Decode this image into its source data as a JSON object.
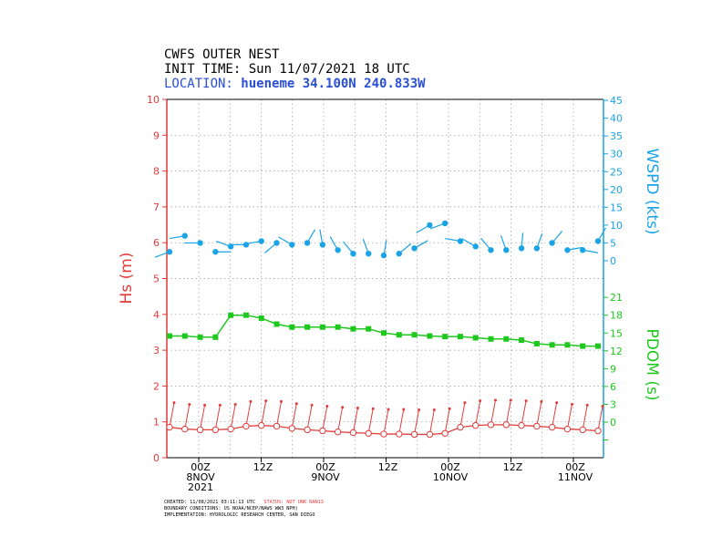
{
  "header": {
    "line1": "CWFS OUTER NEST",
    "line2": "INIT TIME: Sun 11/07/2021 18 UTC",
    "location_label": "LOCATION:",
    "location_value": "hueneme 34.100N 240.833W"
  },
  "footer": {
    "created": "CREATED: 11/08/2021 03:11:13 UTC",
    "status": "STATUS: NOT UNK RAN13",
    "boundary": "BOUNDARY CONDITIONS: US NOAA/NCEP/NAWS WW3 NPH)",
    "implementation": "IMPLEMENTATION: HYDROLOGIC RESEARCH CENTER, SAN DIEGO"
  },
  "colors": {
    "hs": "#e03c3c",
    "wspd": "#1aa3e6",
    "pdom": "#1ec81e",
    "location": "#2a4fd6",
    "status": "#e03c3c"
  },
  "chart_data": {
    "type": "line",
    "x_labels": [
      {
        "top": "00Z",
        "mid": "8NOV",
        "bot": "2021"
      },
      {
        "top": "12Z",
        "mid": "",
        "bot": ""
      },
      {
        "top": "00Z",
        "mid": "9NOV",
        "bot": ""
      },
      {
        "top": "12Z",
        "mid": "",
        "bot": ""
      },
      {
        "top": "00Z",
        "mid": "10NOV",
        "bot": ""
      },
      {
        "top": "12Z",
        "mid": "",
        "bot": ""
      },
      {
        "top": "00Z",
        "mid": "11NOV",
        "bot": ""
      }
    ],
    "hs_axis": {
      "label": "Hs (m)",
      "ticks": [
        "0",
        "1",
        "2",
        "3",
        "4",
        "5",
        "6",
        "7",
        "8",
        "9",
        "10"
      ],
      "ylim": [
        0,
        10
      ]
    },
    "wspd_axis": {
      "label": "WSPD (kts)",
      "ticks": [
        "0",
        "5",
        "10",
        "15",
        "20",
        "25",
        "30",
        "35",
        "40",
        "45"
      ]
    },
    "pdom_axis": {
      "label": "PDOM (s)",
      "ticks": [
        "0",
        "3",
        "6",
        "9",
        "12",
        "15",
        "18",
        "21"
      ]
    },
    "hs": [
      0.85,
      0.8,
      0.78,
      0.78,
      0.8,
      0.88,
      0.9,
      0.88,
      0.82,
      0.78,
      0.75,
      0.72,
      0.7,
      0.68,
      0.66,
      0.66,
      0.65,
      0.65,
      0.68,
      0.85,
      0.9,
      0.92,
      0.92,
      0.9,
      0.88,
      0.85,
      0.8,
      0.78,
      0.75
    ],
    "pdom": [
      14.5,
      14.5,
      14.3,
      14.3,
      18,
      18,
      17.5,
      16.5,
      16,
      16,
      16,
      16,
      15.7,
      15.7,
      15.0,
      14.7,
      14.7,
      14.5,
      14.4,
      14.4,
      14.2,
      14.0,
      14.0,
      13.8,
      13.2,
      13.0,
      13.0,
      12.8,
      12.8
    ],
    "wspd": [
      2.5,
      7,
      5,
      2.5,
      4,
      4.5,
      5.5,
      5,
      4.5,
      5,
      4.5,
      3,
      2,
      2,
      1.5,
      2,
      3.5,
      10,
      10.5,
      5.5,
      4,
      3,
      3,
      3.5,
      3.5,
      5,
      3,
      3,
      5.5
    ],
    "wind_dir_deg": [
      250,
      260,
      270,
      90,
      290,
      270,
      260,
      230,
      300,
      30,
      350,
      330,
      320,
      340,
      10,
      50,
      60,
      240,
      250,
      280,
      300,
      320,
      340,
      5,
      20,
      40,
      80,
      100,
      30
    ]
  }
}
